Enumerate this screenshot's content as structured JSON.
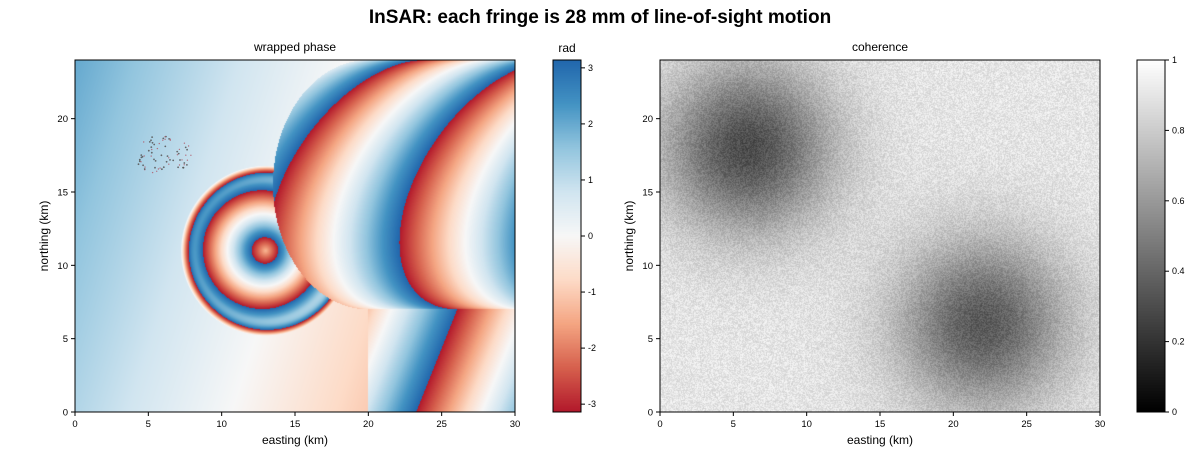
{
  "figure": {
    "title": "InSAR: each fringe is 28 mm of line-of-sight motion"
  },
  "chart_data": [
    {
      "type": "heatmap",
      "title": "wrapped phase",
      "xlabel": "easting (km)",
      "ylabel": "northing (km)",
      "xlim": [
        0,
        30
      ],
      "ylim": [
        0,
        24
      ],
      "xticks": [
        "0",
        "5",
        "10",
        "15",
        "20",
        "25",
        "30"
      ],
      "yticks": [
        "0",
        "5",
        "10",
        "15",
        "20"
      ],
      "colormap": "RdBu",
      "colorbar": {
        "label": "rad",
        "range": [
          -3.14,
          3.14
        ],
        "ticks": [
          "-3",
          "-2",
          "-1",
          "0",
          "1",
          "2",
          "3"
        ]
      },
      "features": {
        "concentric_fringes_center_km": [
          13,
          11
        ],
        "phase_discontinuity": "curved boundary running from about x=9 at the top to about x=20 at the bottom",
        "scattered_points_center_km": [
          6,
          17.5
        ]
      },
      "colors": {
        "positive": "#2166ac",
        "zero": "#f7f7f7",
        "negative": "#b2182b"
      }
    },
    {
      "type": "heatmap",
      "title": "coherence",
      "xlabel": "easting (km)",
      "ylabel": "northing (km)",
      "xlim": [
        0,
        30
      ],
      "ylim": [
        0,
        24
      ],
      "xticks": [
        "0",
        "5",
        "10",
        "15",
        "20",
        "25",
        "30"
      ],
      "yticks": [
        "0",
        "5",
        "10",
        "15",
        "20"
      ],
      "colormap": "gray",
      "colorbar": {
        "label": "",
        "range": [
          0,
          1
        ],
        "ticks": [
          "0",
          "0.2",
          "0.4",
          "0.6",
          "0.8",
          "1"
        ]
      },
      "features": {
        "background_coherence": 0.9,
        "low_coherence_areas": [
          {
            "center_km": [
              6,
              18
            ],
            "min_value": 0.3
          },
          {
            "center_km": [
              22,
              6
            ],
            "min_value": 0.35
          }
        ]
      }
    }
  ]
}
